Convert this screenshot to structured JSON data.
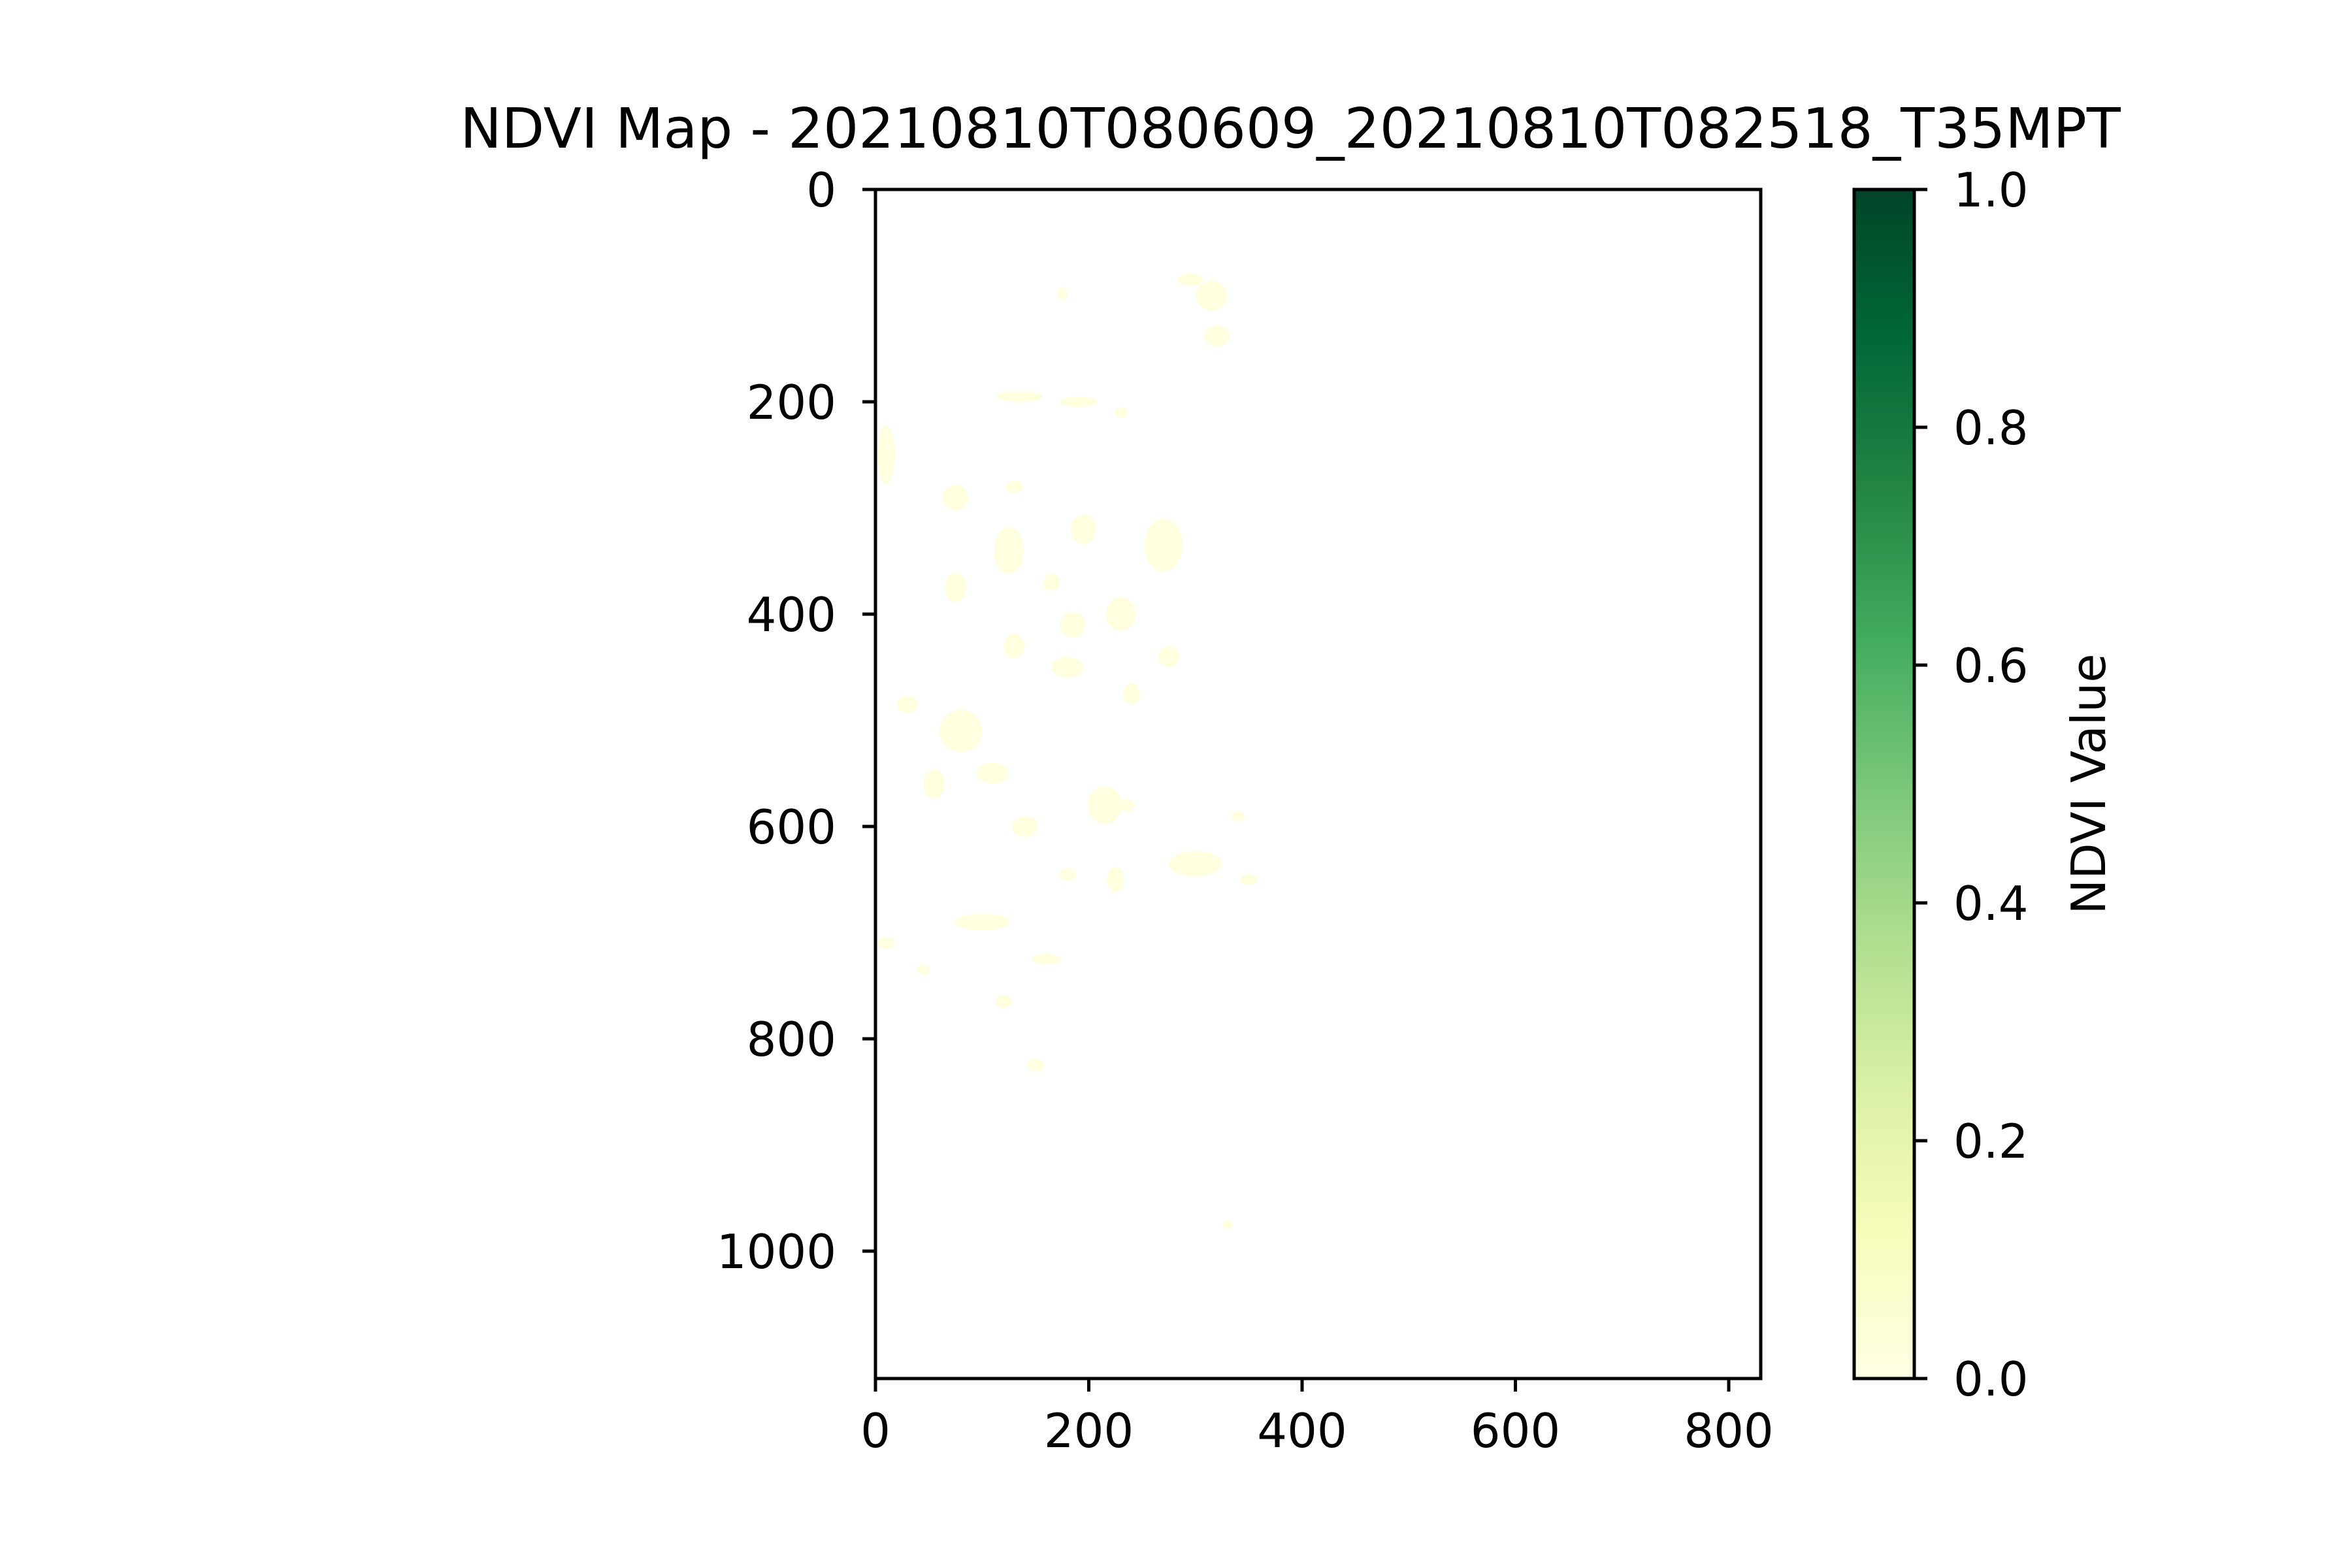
{
  "chart_data": {
    "type": "heatmap",
    "title": "NDVI Map - 20210810T080609_20210810T082518_T35MPT",
    "xlabel": "",
    "ylabel": "",
    "xlim": [
      0,
      830
    ],
    "ylim": [
      1120,
      0
    ],
    "x_ticks": [
      0,
      200,
      400,
      600,
      800
    ],
    "y_ticks": [
      0,
      200,
      400,
      600,
      800,
      1000
    ],
    "grid": false,
    "colormap": "YlGn",
    "colorbar": {
      "label": "NDVI Value",
      "range": [
        0.0,
        1.0
      ],
      "ticks": [
        "0.0",
        "0.2",
        "0.4",
        "0.6",
        "0.8",
        "1.0"
      ],
      "gradient_colors": [
        "#ffffe5",
        "#f7fcb9",
        "#d9f0a3",
        "#addd8e",
        "#78c679",
        "#41ab5d",
        "#238443",
        "#006837",
        "#004529"
      ]
    },
    "background_color": "#ffffff",
    "pixel_color": "#ffffe0",
    "observed_pixels": [
      {
        "x": 315,
        "y": 100,
        "rx": 15,
        "ry": 14
      },
      {
        "x": 295,
        "y": 85,
        "rx": 12,
        "ry": 6
      },
      {
        "x": 320,
        "y": 138,
        "rx": 12,
        "ry": 10
      },
      {
        "x": 175,
        "y": 98,
        "rx": 5,
        "ry": 6
      },
      {
        "x": 135,
        "y": 195,
        "rx": 22,
        "ry": 5
      },
      {
        "x": 190,
        "y": 200,
        "rx": 18,
        "ry": 5
      },
      {
        "x": 230,
        "y": 210,
        "rx": 6,
        "ry": 5
      },
      {
        "x": 10,
        "y": 250,
        "rx": 8,
        "ry": 28
      },
      {
        "x": 75,
        "y": 290,
        "rx": 12,
        "ry": 12
      },
      {
        "x": 130,
        "y": 280,
        "rx": 8,
        "ry": 6
      },
      {
        "x": 125,
        "y": 340,
        "rx": 14,
        "ry": 22
      },
      {
        "x": 195,
        "y": 320,
        "rx": 12,
        "ry": 14
      },
      {
        "x": 270,
        "y": 335,
        "rx": 18,
        "ry": 25
      },
      {
        "x": 75,
        "y": 375,
        "rx": 10,
        "ry": 14
      },
      {
        "x": 165,
        "y": 370,
        "rx": 8,
        "ry": 8
      },
      {
        "x": 185,
        "y": 410,
        "rx": 12,
        "ry": 12
      },
      {
        "x": 230,
        "y": 400,
        "rx": 14,
        "ry": 16
      },
      {
        "x": 130,
        "y": 430,
        "rx": 10,
        "ry": 12
      },
      {
        "x": 180,
        "y": 450,
        "rx": 15,
        "ry": 10
      },
      {
        "x": 275,
        "y": 440,
        "rx": 10,
        "ry": 10
      },
      {
        "x": 240,
        "y": 475,
        "rx": 8,
        "ry": 10
      },
      {
        "x": 30,
        "y": 485,
        "rx": 10,
        "ry": 8
      },
      {
        "x": 80,
        "y": 510,
        "rx": 20,
        "ry": 20
      },
      {
        "x": 110,
        "y": 550,
        "rx": 15,
        "ry": 10
      },
      {
        "x": 55,
        "y": 560,
        "rx": 10,
        "ry": 14
      },
      {
        "x": 215,
        "y": 580,
        "rx": 16,
        "ry": 18
      },
      {
        "x": 235,
        "y": 580,
        "rx": 8,
        "ry": 6
      },
      {
        "x": 140,
        "y": 600,
        "rx": 12,
        "ry": 10
      },
      {
        "x": 300,
        "y": 635,
        "rx": 25,
        "ry": 12
      },
      {
        "x": 350,
        "y": 650,
        "rx": 8,
        "ry": 5
      },
      {
        "x": 180,
        "y": 645,
        "rx": 8,
        "ry": 6
      },
      {
        "x": 225,
        "y": 650,
        "rx": 8,
        "ry": 12
      },
      {
        "x": 340,
        "y": 590,
        "rx": 6,
        "ry": 5
      },
      {
        "x": 100,
        "y": 690,
        "rx": 26,
        "ry": 8
      },
      {
        "x": 160,
        "y": 725,
        "rx": 14,
        "ry": 5
      },
      {
        "x": 10,
        "y": 710,
        "rx": 8,
        "ry": 6
      },
      {
        "x": 45,
        "y": 735,
        "rx": 6,
        "ry": 5
      },
      {
        "x": 120,
        "y": 765,
        "rx": 8,
        "ry": 6
      },
      {
        "x": 150,
        "y": 825,
        "rx": 8,
        "ry": 6
      },
      {
        "x": 330,
        "y": 975,
        "rx": 5,
        "ry": 4
      }
    ]
  }
}
